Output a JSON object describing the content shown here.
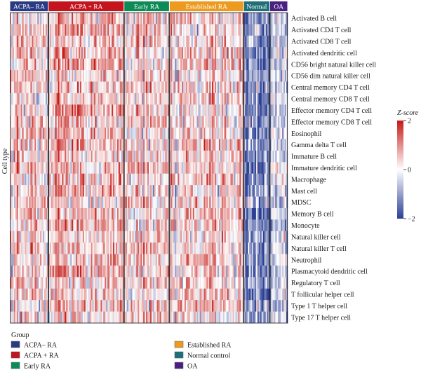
{
  "chart_data": {
    "type": "heatmap",
    "ylabel": "Cell type",
    "rows": [
      "Activated B cell",
      "Activated CD4 T cell",
      "Activated CD8 T cell",
      "Activated dendritic cell",
      "CD56 bright natural killer cell",
      "CD56 dim natural killer cell",
      "Central memory CD4 T cell",
      "Central memory CD8 T cell",
      "Effector memory CD4 T cell",
      "Effector memory CD8 T cell",
      "Eosinophil",
      "Gamma delta T cell",
      "Immature B cell",
      "Immature dendritic cell",
      "Macrophage",
      "Mast cell",
      "MDSC",
      "Memory B cell",
      "Monocyte",
      "Natural killer cell",
      "Natural killer T cell",
      "Neutrophil",
      "Plasmacytoid dendritic cell",
      "Regulatory T cell",
      "T follicular helper cell",
      "Type 1 T helper cell",
      "Type 17 T helper cell"
    ],
    "groups": [
      {
        "label": "ACPA– RA",
        "color": "#2a3a85",
        "columns": 28,
        "mean_z": 0.25
      },
      {
        "label": "ACPA + RA",
        "color": "#c4141e",
        "columns": 55,
        "mean_z": 0.45
      },
      {
        "label": "Early RA",
        "color": "#0e8a56",
        "columns": 33,
        "mean_z": 0.35
      },
      {
        "label": "Established RA",
        "color": "#ee9a1e",
        "columns": 54,
        "mean_z": 0.35
      },
      {
        "label": "Normal",
        "color": "#1f6f78",
        "columns": 19,
        "mean_z": -1.2
      },
      {
        "label": "OA",
        "color": "#4a2080",
        "columns": 13,
        "mean_z": -0.2
      }
    ],
    "colorbar": {
      "title": "Z-score",
      "min": -2,
      "max": 2,
      "ticks": [
        "2",
        "0",
        "−2"
      ],
      "colors": {
        "low": "#2b3f94",
        "mid": "#ffffff",
        "high": "#c41a16"
      }
    },
    "legend": {
      "title": "Group",
      "placement": "bottom-left",
      "items": [
        {
          "label": "ACPA– RA",
          "color": "#2a3a85"
        },
        {
          "label": "Established RA",
          "color": "#ee9a1e"
        },
        {
          "label": "ACPA + RA",
          "color": "#c4141e"
        },
        {
          "label": "Normal control",
          "color": "#1f6f78"
        },
        {
          "label": "Early RA",
          "color": "#0e8a56"
        },
        {
          "label": "OA",
          "color": "#4a2080"
        }
      ]
    }
  }
}
